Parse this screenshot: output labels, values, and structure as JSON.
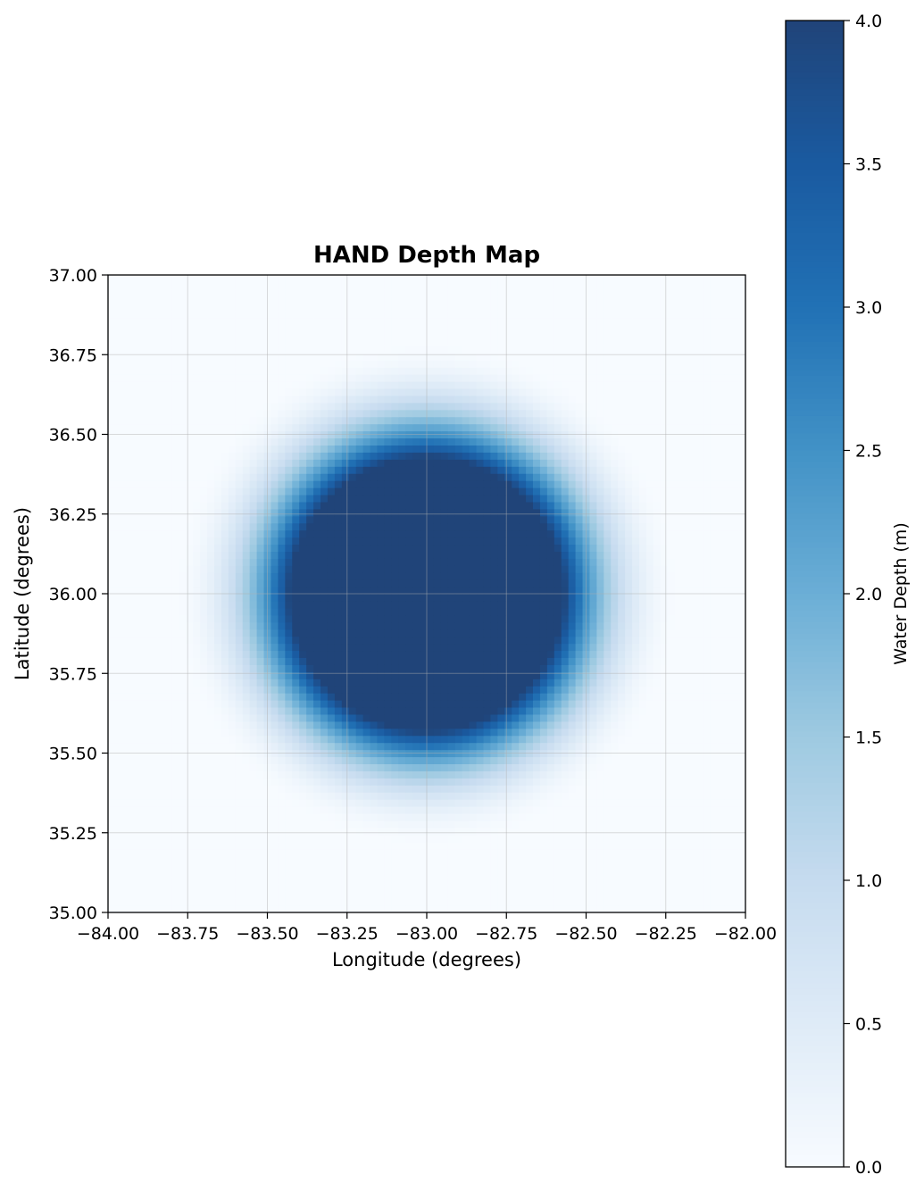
{
  "chart_data": {
    "type": "heatmap",
    "title": "HAND Depth Map",
    "xlabel": "Longitude (degrees)",
    "ylabel": "Latitude (degrees)",
    "colorbar_label": "Water Depth (m)",
    "colormap": "Blues",
    "xlim": [
      -84.0,
      -82.0
    ],
    "ylim": [
      35.0,
      37.0
    ],
    "clim": [
      0.0,
      4.0
    ],
    "grid": true,
    "x_ticks": [
      "−84.00",
      "−83.75",
      "−83.50",
      "−83.25",
      "−83.00",
      "−82.75",
      "−82.50",
      "−82.25",
      "−82.00"
    ],
    "y_ticks": [
      "35.00",
      "35.25",
      "35.50",
      "35.75",
      "36.00",
      "36.25",
      "36.50",
      "36.75",
      "37.00"
    ],
    "colorbar_ticks": [
      "0.0",
      "0.5",
      "1.0",
      "1.5",
      "2.0",
      "2.5",
      "3.0",
      "3.5",
      "4.0"
    ],
    "field": {
      "center_lon": -83.0,
      "center_lat": 36.0,
      "saturated_radius_deg": 0.43,
      "falloff_radius_deg": 0.8,
      "max_depth": 4.0,
      "background_depth": 0.0
    },
    "palette": [
      "#f7fbff",
      "#deebf7",
      "#c6dbef",
      "#9ecae1",
      "#6baed6",
      "#4292c6",
      "#2171b5",
      "#1a5aa0",
      "#204479"
    ]
  }
}
